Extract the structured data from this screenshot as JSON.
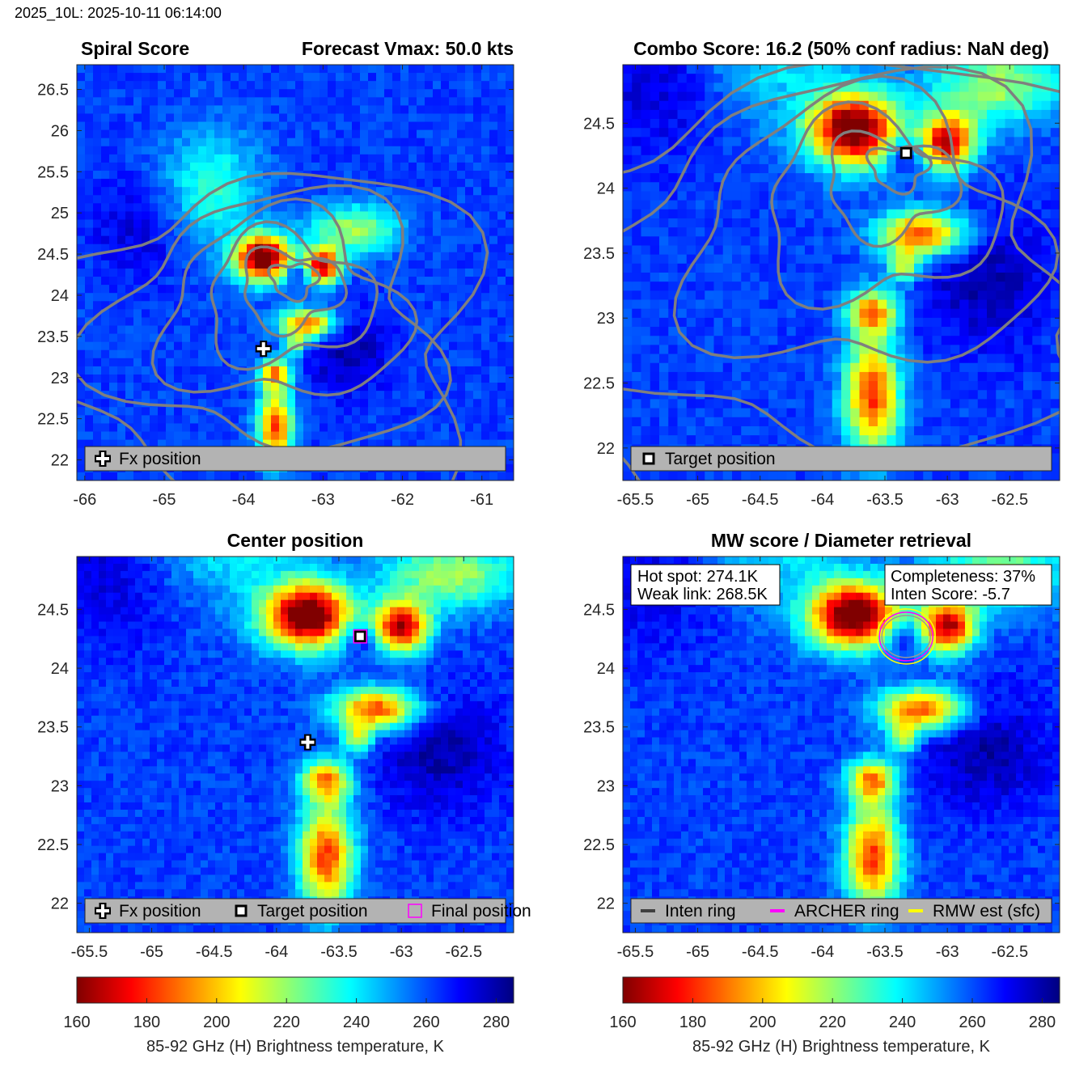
{
  "figure": {
    "suptitle": "2025_10L: 2025-10-11 06:14:00"
  },
  "colormap": {
    "name": "jet-reversed",
    "stops": [
      "#800000",
      "#ff0000",
      "#ff8000",
      "#ffff00",
      "#80ff80",
      "#00ffff",
      "#0080ff",
      "#0000ff",
      "#000080"
    ],
    "range": [
      160,
      285
    ]
  },
  "colorbars": [
    {
      "ticks": [
        "160",
        "180",
        "200",
        "220",
        "240",
        "260",
        "280"
      ],
      "label": "85-92 GHz (H) Brightness temperature, K"
    },
    {
      "ticks": [
        "160",
        "180",
        "200",
        "220",
        "240",
        "260",
        "280"
      ],
      "label": "85-92 GHz (H) Brightness temperature, K"
    }
  ],
  "panels": [
    {
      "title_left": "Spiral Score",
      "title_right": "Forecast Vmax: 50.0 kts",
      "xticks": [
        "-66",
        "-65",
        "-64",
        "-63",
        "-62",
        "-61"
      ],
      "yticks": [
        "22",
        "22.5",
        "23",
        "23.5",
        "24",
        "24.5",
        "25",
        "25.5",
        "26",
        "26.5"
      ],
      "legend": [
        "Fx position"
      ]
    },
    {
      "title": "Combo Score: 16.2  (50% conf radius: NaN deg)",
      "xticks": [
        "-65.5",
        "-65",
        "-64.5",
        "-64",
        "-63.5",
        "-63",
        "-62.5"
      ],
      "yticks": [
        "22",
        "22.5",
        "23",
        "23.5",
        "24",
        "24.5"
      ],
      "legend": [
        "Target position"
      ]
    },
    {
      "title": "Center position",
      "xticks": [
        "-65.5",
        "-65",
        "-64.5",
        "-64",
        "-63.5",
        "-63",
        "-62.5"
      ],
      "yticks": [
        "22",
        "22.5",
        "23",
        "23.5",
        "24",
        "24.5"
      ],
      "legend": [
        "Fx position",
        "Target position",
        "Final position"
      ]
    },
    {
      "title": "MW score / Diameter retrieval",
      "xticks": [
        "-65.5",
        "-65",
        "-64.5",
        "-64",
        "-63.5",
        "-63",
        "-62.5"
      ],
      "yticks": [
        "22",
        "22.5",
        "23",
        "23.5",
        "24",
        "24.5"
      ],
      "legend": [
        "Inten ring",
        "ARCHER ring",
        "RMW est (sfc)"
      ],
      "info_left": [
        "Hot spot: 274.1K",
        "Weak link: 268.5K"
      ],
      "info_right": [
        "Completeness: 37%",
        "Inten Score: -5.7"
      ]
    }
  ],
  "chart_data": [
    {
      "type": "heatmap",
      "title": "Spiral Score",
      "subtitle": "Forecast Vmax: 50.0 kts",
      "xlim": [
        -66.1,
        -60.6
      ],
      "ylim": [
        21.75,
        26.8
      ],
      "variable": "85-92 GHz (H) Brightness temperature, K",
      "clim": [
        160,
        285
      ],
      "contours": "gray spiral score contours",
      "markers": [
        {
          "name": "Fx position",
          "x": -63.75,
          "y": 23.35
        }
      ]
    },
    {
      "type": "heatmap",
      "title": "Combo Score: 16.2  (50% conf radius: NaN deg)",
      "xlim": [
        -65.6,
        -62.1
      ],
      "ylim": [
        21.75,
        24.95
      ],
      "variable": "85-92 GHz (H) Brightness temperature, K",
      "clim": [
        160,
        285
      ],
      "combo_score": 16.2,
      "markers": [
        {
          "name": "Target position",
          "x": -63.33,
          "y": 24.27
        }
      ]
    },
    {
      "type": "heatmap",
      "title": "Center position",
      "xlim": [
        -65.6,
        -62.1
      ],
      "ylim": [
        21.75,
        24.95
      ],
      "variable": "85-92 GHz (H) Brightness temperature, K",
      "clim": [
        160,
        285
      ],
      "markers": [
        {
          "name": "Fx position",
          "x": -63.75,
          "y": 23.37
        },
        {
          "name": "Target position",
          "x": -63.33,
          "y": 24.27
        },
        {
          "name": "Final position",
          "x": -63.33,
          "y": 24.27
        }
      ]
    },
    {
      "type": "heatmap",
      "title": "MW score / Diameter retrieval",
      "xlim": [
        -65.6,
        -62.1
      ],
      "ylim": [
        21.75,
        24.95
      ],
      "variable": "85-92 GHz (H) Brightness temperature, K",
      "clim": [
        160,
        285
      ],
      "hot_spot_K": 274.1,
      "weak_link_K": 268.5,
      "completeness_pct": 37,
      "inten_score": -5.7,
      "rings": [
        {
          "name": "Inten ring",
          "color": "#404040",
          "x": -63.33,
          "y": 24.27
        },
        {
          "name": "ARCHER ring",
          "color": "#ff00ff",
          "x": -63.33,
          "y": 24.27
        },
        {
          "name": "RMW est (sfc)",
          "color": "#ffff00",
          "x": -63.33,
          "y": 24.27
        }
      ]
    }
  ]
}
